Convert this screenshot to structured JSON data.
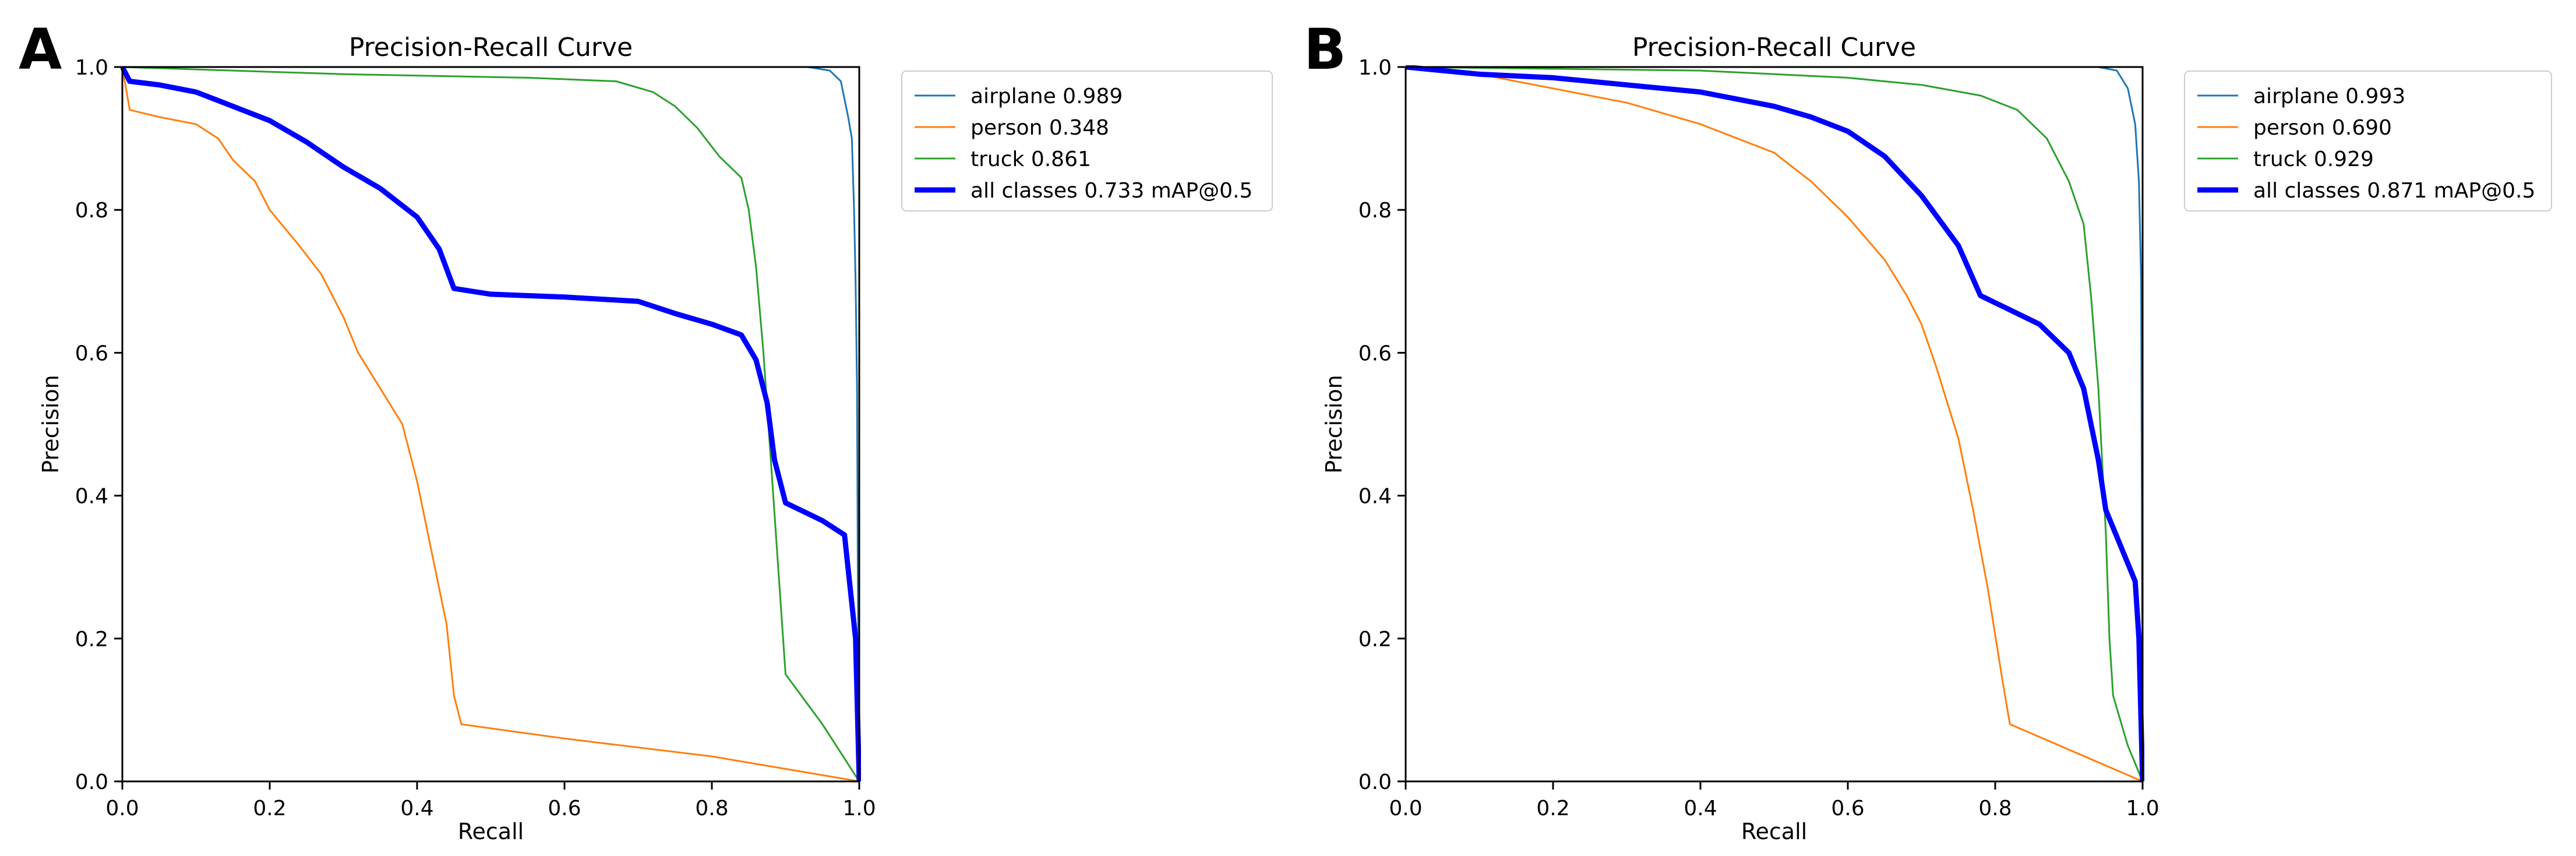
{
  "chart_data": [
    {
      "panel_label": "A",
      "type": "line",
      "title": "Precision-Recall Curve",
      "xlabel": "Recall",
      "ylabel": "Precision",
      "xlim": [
        0,
        1
      ],
      "ylim": [
        0,
        1
      ],
      "xticks": [
        "0.0",
        "0.2",
        "0.4",
        "0.6",
        "0.8",
        "1.0"
      ],
      "yticks": [
        "0.0",
        "0.2",
        "0.4",
        "0.6",
        "0.8",
        "1.0"
      ],
      "legend_position": "outside-upper-right",
      "series": [
        {
          "name": "airplane",
          "legend_label": "airplane 0.989",
          "color": "#1f77b4",
          "weight": "thin",
          "points": [
            [
              0,
              1
            ],
            [
              0.93,
              1
            ],
            [
              0.96,
              0.995
            ],
            [
              0.975,
              0.98
            ],
            [
              0.985,
              0.93
            ],
            [
              0.99,
              0.9
            ],
            [
              0.993,
              0.8
            ],
            [
              0.995,
              0.7
            ],
            [
              0.997,
              0.55
            ],
            [
              0.998,
              0.3
            ],
            [
              1.0,
              0.0
            ]
          ]
        },
        {
          "name": "person",
          "legend_label": "person 0.348",
          "color": "#ff7f0e",
          "weight": "thin",
          "points": [
            [
              0,
              1
            ],
            [
              0.01,
              0.94
            ],
            [
              0.05,
              0.93
            ],
            [
              0.1,
              0.92
            ],
            [
              0.13,
              0.9
            ],
            [
              0.15,
              0.87
            ],
            [
              0.18,
              0.84
            ],
            [
              0.2,
              0.8
            ],
            [
              0.24,
              0.75
            ],
            [
              0.27,
              0.71
            ],
            [
              0.3,
              0.65
            ],
            [
              0.32,
              0.6
            ],
            [
              0.35,
              0.55
            ],
            [
              0.38,
              0.5
            ],
            [
              0.4,
              0.42
            ],
            [
              0.42,
              0.32
            ],
            [
              0.44,
              0.22
            ],
            [
              0.45,
              0.12
            ],
            [
              0.46,
              0.08
            ],
            [
              0.6,
              0.06
            ],
            [
              0.8,
              0.035
            ],
            [
              1.0,
              0.0
            ]
          ]
        },
        {
          "name": "truck",
          "legend_label": "truck 0.861",
          "color": "#2ca02c",
          "weight": "thin",
          "points": [
            [
              0,
              1
            ],
            [
              0.3,
              0.99
            ],
            [
              0.55,
              0.985
            ],
            [
              0.67,
              0.98
            ],
            [
              0.72,
              0.965
            ],
            [
              0.75,
              0.945
            ],
            [
              0.78,
              0.915
            ],
            [
              0.81,
              0.875
            ],
            [
              0.84,
              0.845
            ],
            [
              0.85,
              0.8
            ],
            [
              0.86,
              0.72
            ],
            [
              0.87,
              0.6
            ],
            [
              0.88,
              0.45
            ],
            [
              0.89,
              0.3
            ],
            [
              0.9,
              0.15
            ],
            [
              0.95,
              0.08
            ],
            [
              1.0,
              0.0
            ]
          ]
        },
        {
          "name": "all classes",
          "legend_label": "all classes 0.733 mAP@0.5",
          "color": "#0000ff",
          "weight": "thick",
          "points": [
            [
              0,
              1
            ],
            [
              0.01,
              0.98
            ],
            [
              0.05,
              0.975
            ],
            [
              0.1,
              0.965
            ],
            [
              0.15,
              0.945
            ],
            [
              0.2,
              0.925
            ],
            [
              0.25,
              0.895
            ],
            [
              0.3,
              0.86
            ],
            [
              0.35,
              0.83
            ],
            [
              0.4,
              0.79
            ],
            [
              0.43,
              0.745
            ],
            [
              0.45,
              0.69
            ],
            [
              0.5,
              0.682
            ],
            [
              0.6,
              0.678
            ],
            [
              0.7,
              0.672
            ],
            [
              0.75,
              0.655
            ],
            [
              0.8,
              0.64
            ],
            [
              0.84,
              0.625
            ],
            [
              0.86,
              0.59
            ],
            [
              0.875,
              0.53
            ],
            [
              0.885,
              0.45
            ],
            [
              0.9,
              0.39
            ],
            [
              0.95,
              0.365
            ],
            [
              0.98,
              0.345
            ],
            [
              0.995,
              0.2
            ],
            [
              1.0,
              0.0
            ]
          ]
        }
      ]
    },
    {
      "panel_label": "B",
      "type": "line",
      "title": "Precision-Recall Curve",
      "xlabel": "Recall",
      "ylabel": "Precision",
      "xlim": [
        0,
        1
      ],
      "ylim": [
        0,
        1
      ],
      "xticks": [
        "0.0",
        "0.2",
        "0.4",
        "0.6",
        "0.8",
        "1.0"
      ],
      "yticks": [
        "0.0",
        "0.2",
        "0.4",
        "0.6",
        "0.8",
        "1.0"
      ],
      "legend_position": "outside-upper-right",
      "series": [
        {
          "name": "airplane",
          "legend_label": "airplane 0.993",
          "color": "#1f77b4",
          "weight": "thin",
          "points": [
            [
              0,
              1
            ],
            [
              0.94,
              1
            ],
            [
              0.965,
              0.995
            ],
            [
              0.98,
              0.97
            ],
            [
              0.99,
              0.92
            ],
            [
              0.995,
              0.84
            ],
            [
              0.998,
              0.7
            ],
            [
              0.999,
              0.4
            ],
            [
              1.0,
              0.0
            ]
          ]
        },
        {
          "name": "person",
          "legend_label": "person 0.690",
          "color": "#ff7f0e",
          "weight": "thin",
          "points": [
            [
              0,
              1
            ],
            [
              0.1,
              0.99
            ],
            [
              0.2,
              0.97
            ],
            [
              0.3,
              0.95
            ],
            [
              0.4,
              0.92
            ],
            [
              0.5,
              0.88
            ],
            [
              0.55,
              0.84
            ],
            [
              0.6,
              0.79
            ],
            [
              0.65,
              0.73
            ],
            [
              0.68,
              0.68
            ],
            [
              0.7,
              0.64
            ],
            [
              0.72,
              0.58
            ],
            [
              0.75,
              0.48
            ],
            [
              0.77,
              0.38
            ],
            [
              0.79,
              0.27
            ],
            [
              0.81,
              0.14
            ],
            [
              0.82,
              0.08
            ],
            [
              1.0,
              0.0
            ]
          ]
        },
        {
          "name": "truck",
          "legend_label": "truck 0.929",
          "color": "#2ca02c",
          "weight": "thin",
          "points": [
            [
              0,
              1
            ],
            [
              0.4,
              0.995
            ],
            [
              0.6,
              0.985
            ],
            [
              0.7,
              0.975
            ],
            [
              0.78,
              0.96
            ],
            [
              0.83,
              0.94
            ],
            [
              0.87,
              0.9
            ],
            [
              0.9,
              0.84
            ],
            [
              0.92,
              0.78
            ],
            [
              0.93,
              0.68
            ],
            [
              0.94,
              0.55
            ],
            [
              0.95,
              0.35
            ],
            [
              0.955,
              0.2
            ],
            [
              0.96,
              0.12
            ],
            [
              0.98,
              0.05
            ],
            [
              1.0,
              0.0
            ]
          ]
        },
        {
          "name": "all classes",
          "legend_label": "all classes 0.871 mAP@0.5",
          "color": "#0000ff",
          "weight": "thick",
          "points": [
            [
              0,
              1
            ],
            [
              0.1,
              0.99
            ],
            [
              0.2,
              0.985
            ],
            [
              0.3,
              0.975
            ],
            [
              0.4,
              0.965
            ],
            [
              0.5,
              0.945
            ],
            [
              0.55,
              0.93
            ],
            [
              0.6,
              0.91
            ],
            [
              0.65,
              0.875
            ],
            [
              0.7,
              0.82
            ],
            [
              0.75,
              0.75
            ],
            [
              0.78,
              0.68
            ],
            [
              0.82,
              0.66
            ],
            [
              0.86,
              0.64
            ],
            [
              0.9,
              0.6
            ],
            [
              0.92,
              0.55
            ],
            [
              0.94,
              0.45
            ],
            [
              0.95,
              0.38
            ],
            [
              0.97,
              0.33
            ],
            [
              0.99,
              0.28
            ],
            [
              0.995,
              0.2
            ],
            [
              1.0,
              0.0
            ]
          ]
        }
      ]
    }
  ]
}
